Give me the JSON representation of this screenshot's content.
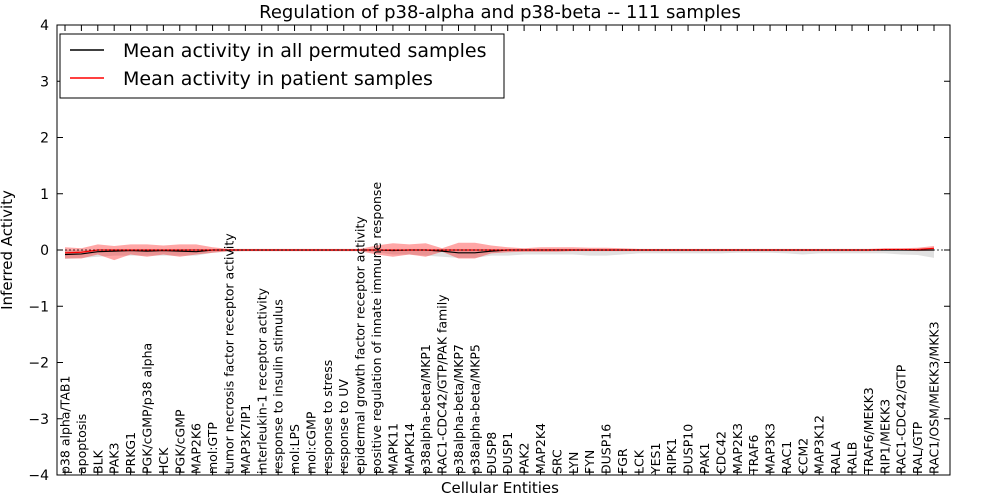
{
  "chart_data": {
    "type": "line",
    "title": "Regulation of p38-alpha and p38-beta -- 111 samples",
    "xlabel": "Cellular Entities",
    "ylabel": "Inferred Activity",
    "ylim": [
      -4,
      4
    ],
    "yticks": [
      -4,
      -3,
      -2,
      -1,
      0,
      1,
      2,
      3,
      4
    ],
    "ytick_labels": [
      "−4",
      "−3",
      "−2",
      "−1",
      "0",
      "1",
      "2",
      "3",
      "4"
    ],
    "grid": false,
    "legend_position": "top-left",
    "categories": [
      "p38 alpha/TAB1",
      "apoptosis",
      "BLK",
      "PAK3",
      "PRKG1",
      "PGK/cGMP/p38 alpha",
      "HCK",
      "PGK/cGMP",
      "MAP2K6",
      "mol:GTP",
      "tumor necrosis factor receptor activity",
      "MAP3K7IP1",
      "interleukin-1 receptor activity",
      "response to insulin stimulus",
      "mol:LPS",
      "mol:cGMP",
      "response to stress",
      "response to UV",
      "epidermal growth factor receptor activity",
      "positive regulation of innate immune response",
      "MAPK11",
      "MAPK14",
      "p38alpha-beta/MKP1",
      "RAC1-CDC42/GTP/PAK family",
      "p38alpha-beta/MKP7",
      "p38alpha-beta/MKP5",
      "DUSP8",
      "DUSP1",
      "PAK2",
      "MAP2K4",
      "SRC",
      "LYN",
      "FYN",
      "DUSP16",
      "FGR",
      "LCK",
      "YES1",
      "RIPK1",
      "DUSP10",
      "PAK1",
      "CDC42",
      "MAP2K3",
      "TRAF6",
      "MAP3K3",
      "RAC1",
      "CCM2",
      "MAP3K12",
      "RALA",
      "RALB",
      "TRAF6/MEKK3",
      "RIP1/MEKK3",
      "RAC1-CDC42/GTP",
      "RAL/GTP",
      "RAC1/OSM/MEKK3/MKK3"
    ],
    "series": [
      {
        "name": "Mean activity in all permuted samples",
        "color": "#000000",
        "values": [
          -0.08,
          -0.07,
          -0.03,
          -0.02,
          -0.01,
          -0.02,
          -0.01,
          -0.02,
          -0.03,
          0,
          0,
          0,
          0,
          0,
          0,
          0,
          0,
          0,
          0,
          0,
          -0.01,
          0,
          0,
          -0.02,
          -0.05,
          -0.05,
          -0.02,
          0,
          0,
          0,
          0,
          0,
          0,
          0,
          0,
          0,
          0,
          0,
          0,
          0,
          0,
          0,
          0,
          0,
          0,
          0,
          0,
          0,
          0,
          0,
          0,
          0,
          0,
          0
        ],
        "band_upper": [
          0.0,
          0.0,
          0.0,
          0.0,
          0.0,
          0.0,
          0.0,
          0.0,
          0.0,
          0.0,
          0.0,
          0.0,
          0.0,
          0.0,
          0.0,
          0.0,
          0.0,
          0.0,
          0.0,
          0.0,
          0.0,
          0.0,
          0.0,
          0.0,
          0.0,
          0.0,
          0.0,
          0.0,
          0.0,
          0.0,
          0.0,
          0.0,
          0.0,
          0.0,
          0.0,
          0.0,
          0.0,
          0.0,
          0.0,
          0.0,
          0.0,
          0.0,
          0.0,
          0.0,
          0.0,
          0.0,
          0.0,
          0.0,
          0.0,
          0.0,
          0.0,
          0.0,
          0.0,
          0.0
        ],
        "band_lower": [
          -0.16,
          -0.14,
          -0.12,
          -0.1,
          -0.1,
          -0.1,
          -0.1,
          -0.1,
          -0.1,
          -0.05,
          -0.03,
          -0.02,
          -0.02,
          -0.02,
          -0.02,
          -0.02,
          -0.02,
          -0.02,
          -0.02,
          -0.04,
          -0.08,
          -0.08,
          -0.1,
          -0.12,
          -0.14,
          -0.14,
          -0.1,
          -0.1,
          -0.08,
          -0.08,
          -0.08,
          -0.08,
          -0.1,
          -0.1,
          -0.08,
          -0.06,
          -0.06,
          -0.06,
          -0.06,
          -0.06,
          -0.06,
          -0.05,
          -0.05,
          -0.05,
          -0.06,
          -0.08,
          -0.06,
          -0.06,
          -0.06,
          -0.06,
          -0.06,
          -0.08,
          -0.09,
          -0.14
        ]
      },
      {
        "name": "Mean activity in patient samples",
        "color": "#ff0000",
        "values": [
          -0.05,
          -0.04,
          0,
          0,
          0,
          0,
          0,
          0,
          0,
          0,
          0,
          0,
          0,
          0,
          0,
          0,
          0,
          0,
          0,
          0,
          0,
          0,
          0,
          0,
          0,
          0,
          0,
          0,
          0,
          0,
          0,
          0,
          0,
          0,
          0,
          0,
          0,
          0,
          0,
          0,
          0,
          0,
          0,
          0,
          0,
          0,
          0,
          0,
          0,
          0,
          0.01,
          0.01,
          0.01,
          0.03
        ],
        "band_upper": [
          0.05,
          0.03,
          0.1,
          0.07,
          0.1,
          0.1,
          0.08,
          0.1,
          0.1,
          0.05,
          0.02,
          0.02,
          0.02,
          0.02,
          0.02,
          0.02,
          0.02,
          0.02,
          0.02,
          0.08,
          0.12,
          0.1,
          0.12,
          0.03,
          0.13,
          0.13,
          0.08,
          0.05,
          0.03,
          0.05,
          0.05,
          0.05,
          0.04,
          0.04,
          0.03,
          0.02,
          0.02,
          0.02,
          0.02,
          0.02,
          0.02,
          0.02,
          0.02,
          0.02,
          0.02,
          0.02,
          0.02,
          0.02,
          0.02,
          0.02,
          0.03,
          0.03,
          0.04,
          0.07
        ],
        "band_lower": [
          -0.15,
          -0.15,
          -0.08,
          -0.18,
          -0.08,
          -0.12,
          -0.08,
          -0.12,
          -0.08,
          -0.05,
          -0.02,
          -0.02,
          -0.02,
          -0.02,
          -0.02,
          -0.02,
          -0.02,
          -0.02,
          -0.02,
          -0.08,
          -0.12,
          -0.08,
          -0.12,
          -0.03,
          -0.15,
          -0.15,
          -0.06,
          -0.04,
          -0.03,
          -0.03,
          -0.03,
          -0.02,
          -0.02,
          -0.02,
          -0.02,
          -0.02,
          -0.02,
          -0.02,
          -0.02,
          -0.02,
          -0.02,
          -0.02,
          -0.02,
          -0.02,
          -0.02,
          -0.02,
          -0.02,
          -0.02,
          -0.02,
          -0.02,
          -0.01,
          -0.01,
          -0.02,
          -0.01
        ]
      }
    ]
  }
}
